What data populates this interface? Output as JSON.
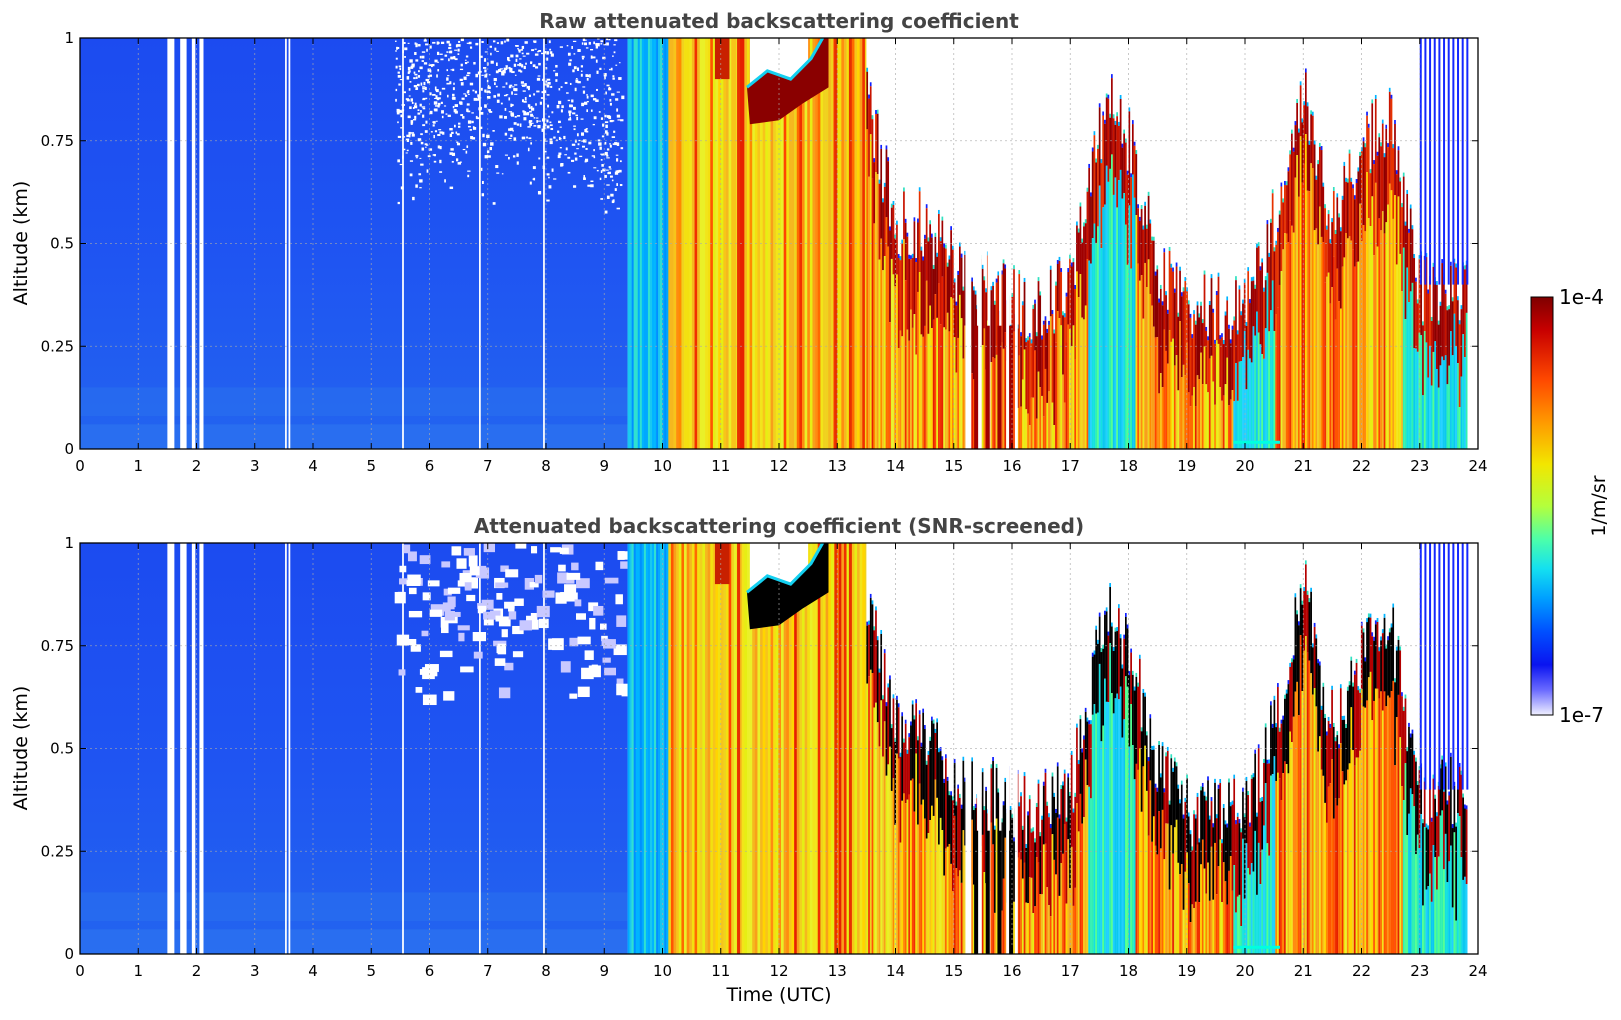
{
  "chart_data": [
    {
      "type": "heatmap",
      "title": "Raw attenuated backscattering coefficient",
      "xlabel": "",
      "ylabel": "Altitude (km)",
      "xlim": [
        0,
        24
      ],
      "ylim": [
        0,
        1
      ],
      "x_ticks": [
        "0",
        "1",
        "2",
        "3",
        "4",
        "5",
        "6",
        "7",
        "8",
        "9",
        "10",
        "11",
        "12",
        "13",
        "14",
        "15",
        "16",
        "17",
        "18",
        "19",
        "20",
        "21",
        "22",
        "23",
        "24"
      ],
      "y_ticks": [
        "0",
        "0.25",
        "0.5",
        "0.75",
        "1"
      ],
      "grid": true,
      "cloud_top_km": [
        {
          "t": 13.5,
          "top": 0.85
        },
        {
          "t": 14.0,
          "top": 0.55
        },
        {
          "t": 14.5,
          "top": 0.55
        },
        {
          "t": 15.0,
          "top": 0.45
        },
        {
          "t": 16.3,
          "top": 0.35
        },
        {
          "t": 17.0,
          "top": 0.4
        },
        {
          "t": 17.6,
          "top": 0.85
        },
        {
          "t": 18.0,
          "top": 0.75
        },
        {
          "t": 18.5,
          "top": 0.45
        },
        {
          "t": 19.0,
          "top": 0.35
        },
        {
          "t": 19.8,
          "top": 0.35
        },
        {
          "t": 20.3,
          "top": 0.45
        },
        {
          "t": 21.0,
          "top": 0.9
        },
        {
          "t": 21.5,
          "top": 0.55
        },
        {
          "t": 22.0,
          "top": 0.75
        },
        {
          "t": 22.5,
          "top": 0.8
        },
        {
          "t": 23.0,
          "top": 0.4
        },
        {
          "t": 23.8,
          "top": 0.4
        }
      ]
    },
    {
      "type": "heatmap",
      "title": "Attenuated backscattering coefficient (SNR-screened)",
      "xlabel": "Time (UTC)",
      "ylabel": "Altitude (km)",
      "xlim": [
        0,
        24
      ],
      "ylim": [
        0,
        1
      ],
      "x_ticks": [
        "0",
        "1",
        "2",
        "3",
        "4",
        "5",
        "6",
        "7",
        "8",
        "9",
        "10",
        "11",
        "12",
        "13",
        "14",
        "15",
        "16",
        "17",
        "18",
        "19",
        "20",
        "21",
        "22",
        "23",
        "24"
      ],
      "y_ticks": [
        "0",
        "0.25",
        "0.5",
        "0.75",
        "1"
      ],
      "grid": true
    }
  ],
  "colorbar": {
    "max_label": "1e-4",
    "min_label": "1e-7",
    "label": "1/m/sr",
    "colors": [
      "#7f0000",
      "#b30000",
      "#e31a00",
      "#ff5a00",
      "#ff9a00",
      "#ffcc00",
      "#e6f000",
      "#b4ff3c",
      "#5effa0",
      "#1ee6e6",
      "#00a8ff",
      "#0064ff",
      "#0028ff",
      "#1414e6",
      "#7a7aff",
      "#eeeeff"
    ]
  }
}
